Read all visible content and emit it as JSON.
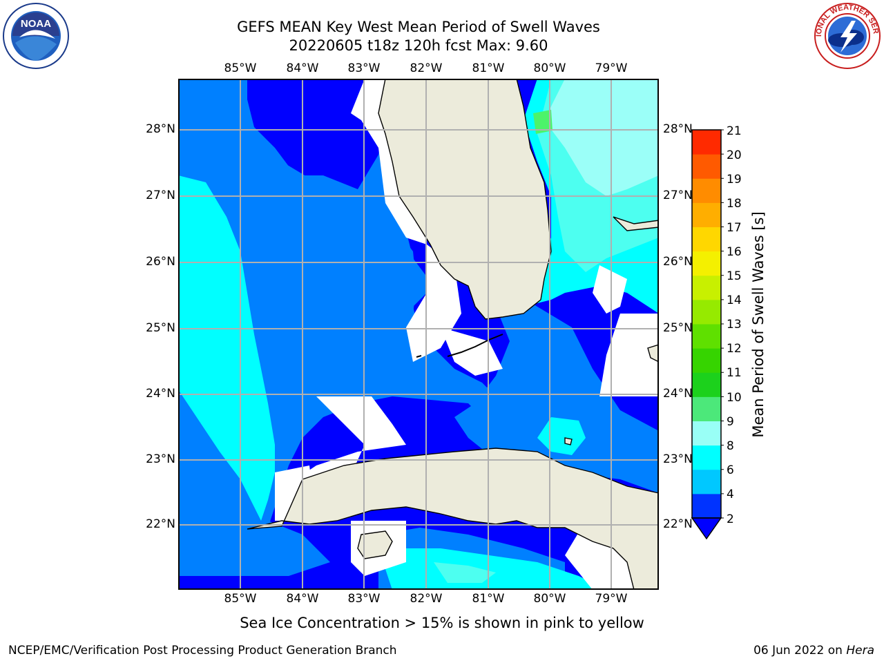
{
  "title": {
    "line1": "GEFS MEAN Key West Mean Period of Swell Waves",
    "line2": "20220605 t18z 120h fcst   Max: 9.60"
  },
  "map": {
    "lon_labels": [
      "85°W",
      "84°W",
      "83°W",
      "82°W",
      "81°W",
      "80°W",
      "79°W"
    ],
    "lat_labels": [
      "28°N",
      "27°N",
      "26°N",
      "25°N",
      "24°N",
      "23°N",
      "22°N"
    ],
    "colors": {
      "land": "#ecebdb",
      "coast": "#000000",
      "grid": "#b0b0b0",
      "c2_4": "#0000ff",
      "c4_6": "#0080ff",
      "c6_8": "#00ffff",
      "c8_9": "#4dfff0",
      "c9_10": "#9bfff8",
      "c10_11": "#4cf36a"
    }
  },
  "colorbar": {
    "title": "Mean Period of Swell Waves [s]",
    "tick_labels": [
      "2",
      "4",
      "6",
      "8",
      "9",
      "10",
      "11",
      "12",
      "13",
      "14",
      "15",
      "16",
      "17",
      "18",
      "19",
      "20",
      "21"
    ],
    "colors": [
      "#0033ff",
      "#00c8ff",
      "#00ffff",
      "#99fff6",
      "#4ce87a",
      "#1cd11c",
      "#36d400",
      "#5fe000",
      "#96ea00",
      "#c8f000",
      "#f4f000",
      "#ffd700",
      "#ffae00",
      "#ff8c00",
      "#ff5a00",
      "#ff2a00",
      "#ff0000"
    ]
  },
  "footnote": "Sea Ice Concentration > 15% is shown in pink to yellow",
  "credit": "NCEP/EMC/Verification Post Processing Product Generation Branch",
  "date": {
    "text": "06 Jun 2022 on ",
    "host": "Hera"
  },
  "logos": {
    "noaa": "NOAA",
    "nws": "NATIONAL WEATHER SERVICE"
  }
}
